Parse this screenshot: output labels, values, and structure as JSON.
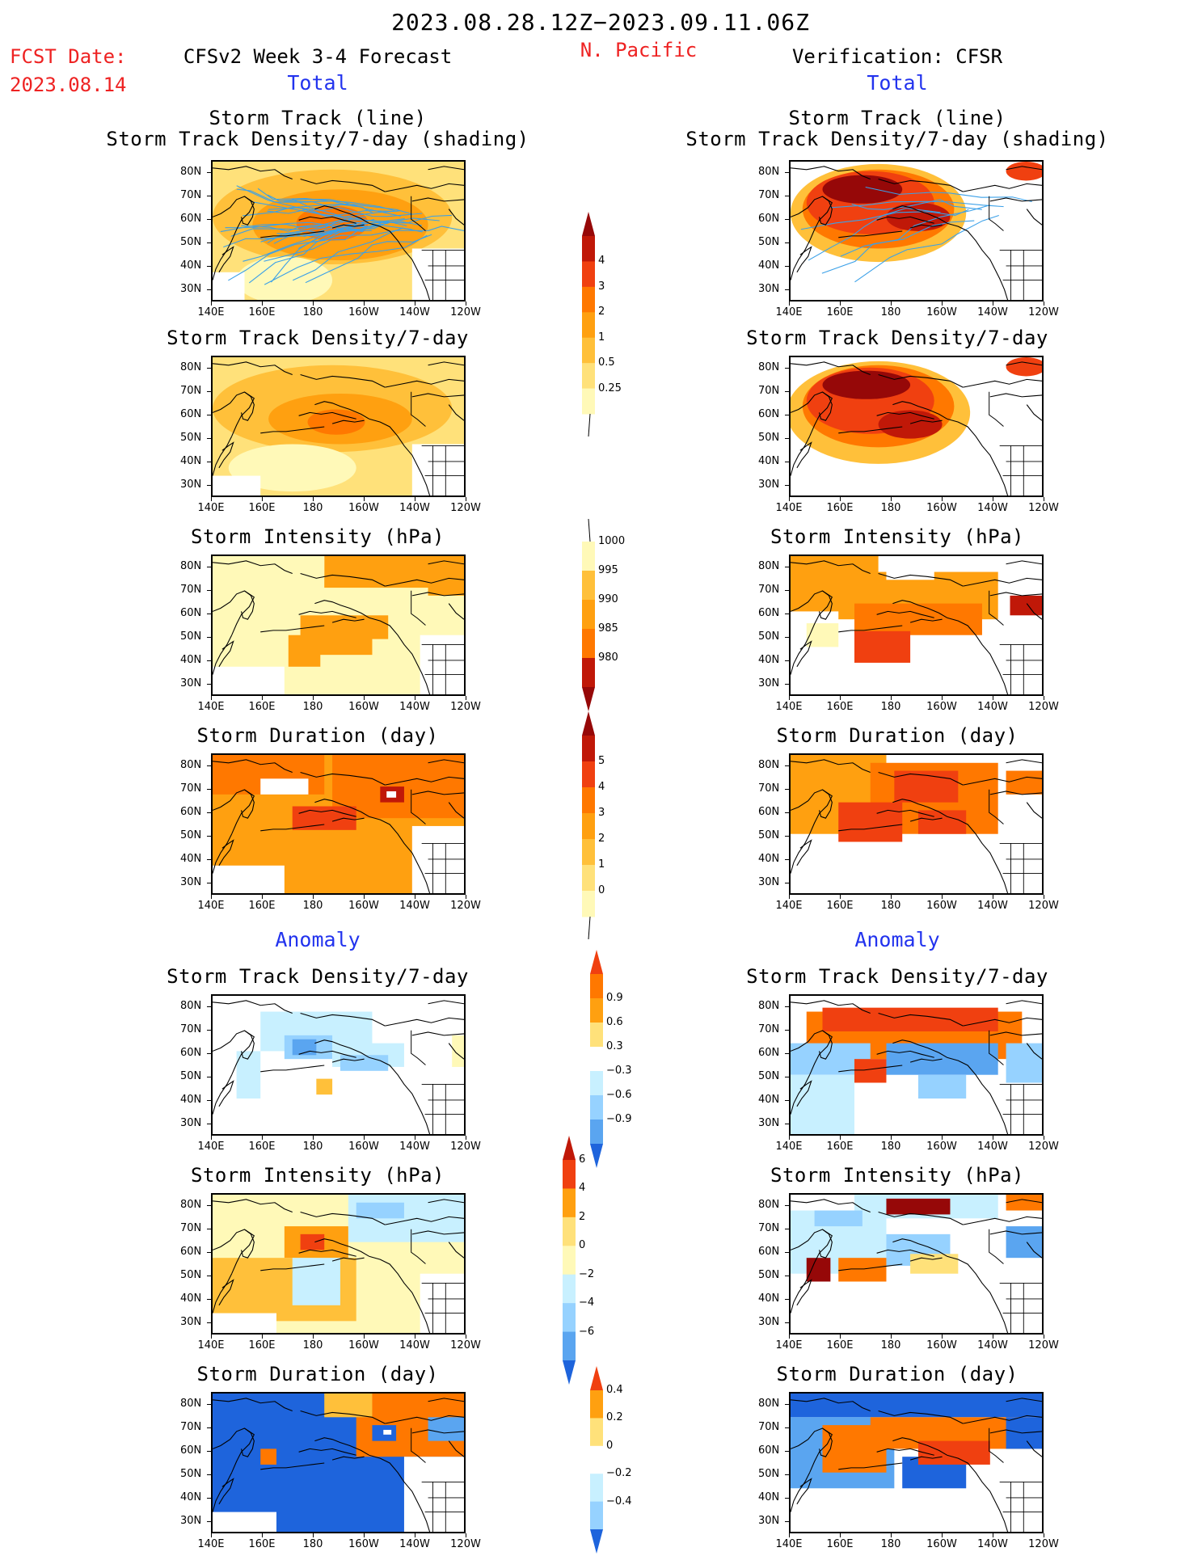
{
  "header": {
    "period": "2023.08.28.12Z−2023.09.11.06Z",
    "fcst_label": "FCST Date:",
    "fcst_date": "2023.08.14",
    "model": "CFSv2 Week 3-4 Forecast",
    "region": "N. Pacific",
    "verification": "Verification: CFSR",
    "total_left": "Total",
    "total_right": "Total",
    "anomaly_left": "Anomaly",
    "anomaly_right": "Anomaly"
  },
  "colors": {
    "c1": "#fff9b8",
    "c2": "#ffe17a",
    "c3": "#ffc03a",
    "c4": "#ffa010",
    "c5": "#ff7800",
    "c6": "#f04010",
    "c7": "#c01808",
    "c8": "#960808",
    "n1": "#c8f0ff",
    "n2": "#96d2ff",
    "n3": "#5aa5f0",
    "n4": "#1e64dc",
    "track": "#3aa0e8"
  },
  "axes": {
    "lat_ticks": [
      "80N",
      "70N",
      "60N",
      "50N",
      "40N",
      "30N"
    ],
    "lon_ticks": [
      "140E",
      "160E",
      "180",
      "160W",
      "140W",
      "120W"
    ]
  },
  "panel_titles": {
    "r1a": "Storm Track (line)",
    "r1b": "Storm Track Density/7-day (shading)",
    "r2": "Storm Track Density/7-day",
    "r3": "Storm Intensity (hPa)",
    "r4": "Storm Duration (day)",
    "r5": "Storm Track Density/7-day",
    "r6": "Storm Intensity (hPa)",
    "r7": "Storm Duration (day)"
  },
  "colorbars": {
    "density": [
      "4",
      "3",
      "2",
      "1",
      "0.5",
      "0.25"
    ],
    "intensity": [
      "1000",
      "995",
      "990",
      "985",
      "980"
    ],
    "duration": [
      "5",
      "4",
      "3",
      "2",
      "1",
      "0"
    ],
    "density_anom": [
      "0.9",
      "0.6",
      "0.3",
      "−0.3",
      "−0.6",
      "−0.9"
    ],
    "intensity_anom": [
      "6",
      "4",
      "2",
      "0",
      "−2",
      "−4",
      "−6"
    ],
    "duration_anom": [
      "0.4",
      "0.2",
      "0",
      "−0.2",
      "−0.4"
    ]
  },
  "chart_data": [
    {
      "type": "heatmap",
      "panel": "forecast-total-storm-track",
      "title": "Storm Track (line) / Storm Track Density/7-day (shading)",
      "xlim": [
        "140E",
        "120W"
      ],
      "ylim": [
        "25N",
        "85N"
      ],
      "levels": [
        0.25,
        0.5,
        1,
        2,
        3,
        4
      ]
    },
    {
      "type": "heatmap",
      "panel": "verification-total-storm-track",
      "title": "Storm Track (line) / Storm Track Density/7-day (shading)",
      "xlim": [
        "140E",
        "120W"
      ],
      "ylim": [
        "25N",
        "85N"
      ],
      "levels": [
        0.25,
        0.5,
        1,
        2,
        3,
        4
      ]
    },
    {
      "type": "heatmap",
      "panel": "forecast-total-density",
      "title": "Storm Track Density/7-day",
      "levels": [
        0.25,
        0.5,
        1,
        2,
        3,
        4
      ]
    },
    {
      "type": "heatmap",
      "panel": "verification-total-density",
      "title": "Storm Track Density/7-day",
      "levels": [
        0.25,
        0.5,
        1,
        2,
        3,
        4
      ]
    },
    {
      "type": "heatmap",
      "panel": "forecast-total-intensity",
      "title": "Storm Intensity (hPa)",
      "levels": [
        1000,
        995,
        990,
        985,
        980
      ]
    },
    {
      "type": "heatmap",
      "panel": "verification-total-intensity",
      "title": "Storm Intensity (hPa)",
      "levels": [
        1000,
        995,
        990,
        985,
        980
      ]
    },
    {
      "type": "heatmap",
      "panel": "forecast-total-duration",
      "title": "Storm Duration (day)",
      "levels": [
        0,
        1,
        2,
        3,
        4,
        5
      ]
    },
    {
      "type": "heatmap",
      "panel": "verification-total-duration",
      "title": "Storm Duration (day)",
      "levels": [
        0,
        1,
        2,
        3,
        4,
        5
      ]
    },
    {
      "type": "heatmap",
      "panel": "forecast-anomaly-density",
      "title": "Storm Track Density/7-day",
      "levels": [
        -0.9,
        -0.6,
        -0.3,
        0.3,
        0.6,
        0.9
      ]
    },
    {
      "type": "heatmap",
      "panel": "verification-anomaly-density",
      "title": "Storm Track Density/7-day",
      "levels": [
        -0.9,
        -0.6,
        -0.3,
        0.3,
        0.6,
        0.9
      ]
    },
    {
      "type": "heatmap",
      "panel": "forecast-anomaly-intensity",
      "title": "Storm Intensity (hPa)",
      "levels": [
        -6,
        -4,
        -2,
        0,
        2,
        4,
        6
      ]
    },
    {
      "type": "heatmap",
      "panel": "verification-anomaly-intensity",
      "title": "Storm Intensity (hPa)",
      "levels": [
        -6,
        -4,
        -2,
        0,
        2,
        4,
        6
      ]
    },
    {
      "type": "heatmap",
      "panel": "forecast-anomaly-duration",
      "title": "Storm Duration (day)",
      "levels": [
        -0.4,
        -0.2,
        0,
        0.2,
        0.4
      ]
    },
    {
      "type": "heatmap",
      "panel": "verification-anomaly-duration",
      "title": "Storm Duration (day)",
      "levels": [
        -0.4,
        -0.2,
        0,
        0.2,
        0.4
      ]
    }
  ]
}
